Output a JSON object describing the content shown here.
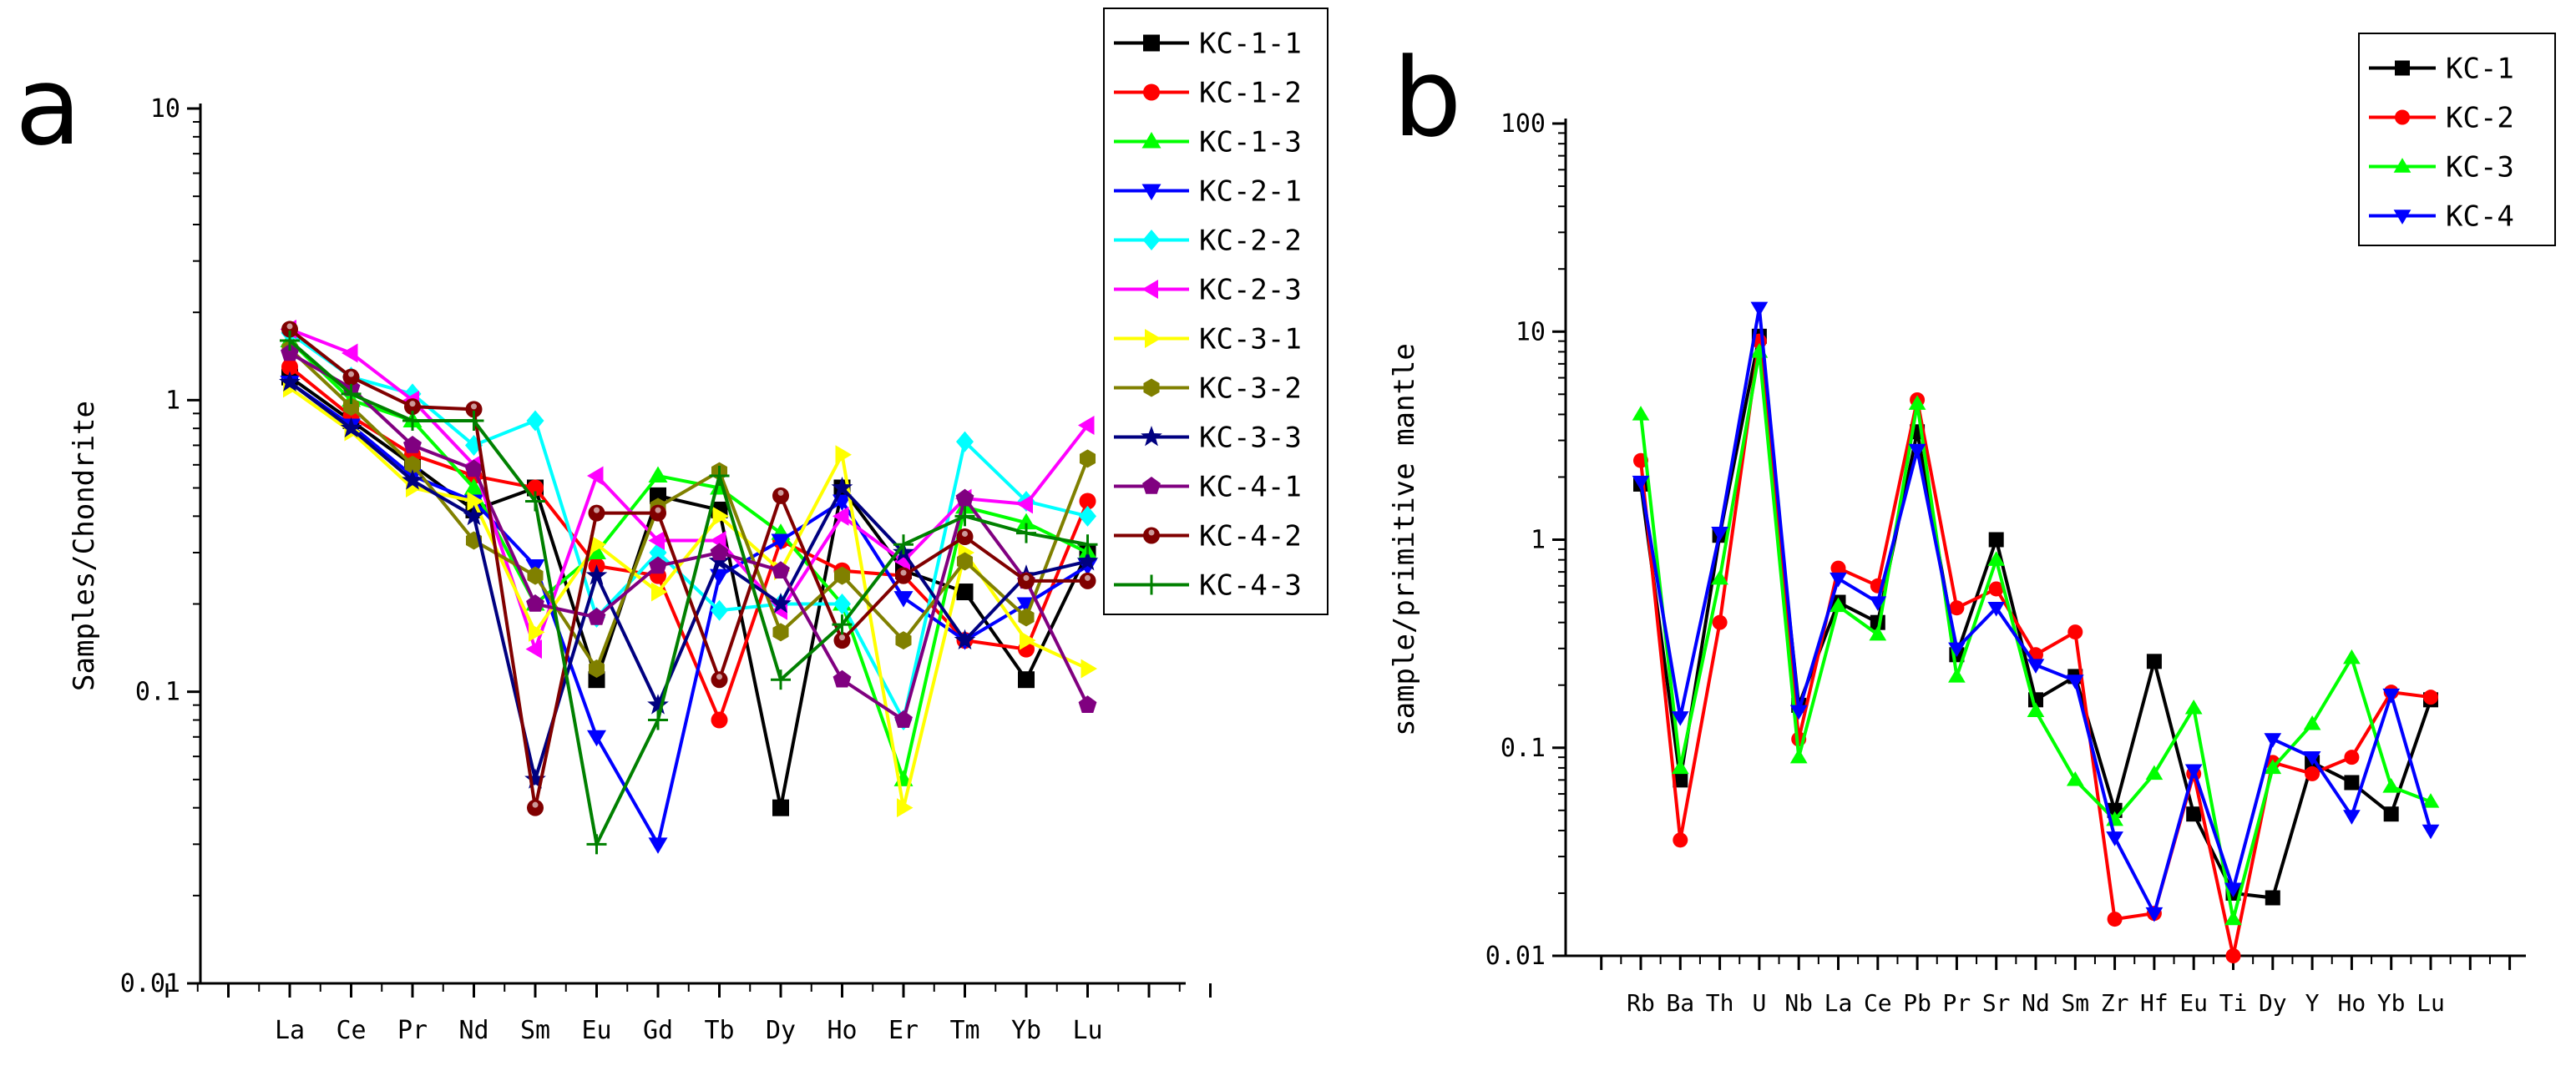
{
  "chart_data": [
    {
      "type": "line",
      "panel_label": "a",
      "ylabel": "Samples/Chondrite",
      "xlabel": "",
      "yscale": "log",
      "ylim": [
        0.01,
        10
      ],
      "ytick_labels": [
        "0.01",
        "0.1",
        "1",
        "10"
      ],
      "categories": [
        "La",
        "Ce",
        "Pr",
        "Nd",
        "Sm",
        "Eu",
        "Gd",
        "Tb",
        "Dy",
        "Ho",
        "Er",
        "Tm",
        "Yb",
        "Lu"
      ],
      "legend_position": "outside-right",
      "series": [
        {
          "name": "KC-1-1",
          "color": "#000000",
          "marker": "square",
          "values": [
            1.2,
            0.85,
            0.6,
            0.42,
            0.5,
            0.11,
            0.47,
            0.42,
            0.04,
            0.5,
            0.26,
            0.22,
            0.11,
            0.3
          ]
        },
        {
          "name": "KC-1-2",
          "color": "#ff0000",
          "marker": "circle",
          "values": [
            1.3,
            0.88,
            0.65,
            0.55,
            0.5,
            0.27,
            0.25,
            0.08,
            0.33,
            0.26,
            0.25,
            0.15,
            0.14,
            0.45
          ]
        },
        {
          "name": "KC-1-3",
          "color": "#00ff00",
          "marker": "triangle-up",
          "values": [
            1.6,
            1.0,
            0.85,
            0.5,
            0.2,
            0.3,
            0.55,
            0.5,
            0.35,
            0.2,
            0.05,
            0.43,
            0.38,
            0.3
          ]
        },
        {
          "name": "KC-2-1",
          "color": "#0000ff",
          "marker": "triangle-down",
          "values": [
            1.15,
            0.82,
            0.55,
            0.45,
            0.27,
            0.07,
            0.03,
            0.25,
            0.33,
            0.45,
            0.21,
            0.15,
            0.2,
            0.27
          ]
        },
        {
          "name": "KC-2-2",
          "color": "#00ffff",
          "marker": "diamond",
          "values": [
            1.7,
            1.2,
            1.05,
            0.7,
            0.85,
            0.18,
            0.3,
            0.19,
            0.2,
            0.2,
            0.08,
            0.72,
            0.45,
            0.4
          ]
        },
        {
          "name": "KC-2-3",
          "color": "#ff00ff",
          "marker": "triangle-left",
          "values": [
            1.75,
            1.45,
            1.0,
            0.6,
            0.14,
            0.55,
            0.33,
            0.33,
            0.19,
            0.4,
            0.28,
            0.46,
            0.44,
            0.82
          ]
        },
        {
          "name": "KC-3-1",
          "color": "#ffff00",
          "marker": "triangle-right",
          "values": [
            1.1,
            0.78,
            0.5,
            0.45,
            0.16,
            0.32,
            0.22,
            0.4,
            0.26,
            0.65,
            0.04,
            0.3,
            0.15,
            0.12
          ]
        },
        {
          "name": "KC-3-2",
          "color": "#808000",
          "marker": "hexagon",
          "values": [
            1.5,
            0.95,
            0.6,
            0.33,
            0.25,
            0.12,
            0.43,
            0.57,
            0.16,
            0.25,
            0.15,
            0.28,
            0.18,
            0.63
          ]
        },
        {
          "name": "KC-3-3",
          "color": "#000080",
          "marker": "star",
          "values": [
            1.15,
            0.8,
            0.53,
            0.4,
            0.05,
            0.25,
            0.09,
            0.28,
            0.2,
            0.5,
            0.3,
            0.15,
            0.25,
            0.28
          ]
        },
        {
          "name": "KC-4-1",
          "color": "#800080",
          "marker": "pentagon",
          "values": [
            1.45,
            1.1,
            0.7,
            0.58,
            0.2,
            0.18,
            0.27,
            0.3,
            0.26,
            0.11,
            0.08,
            0.46,
            0.24,
            0.09
          ]
        },
        {
          "name": "KC-4-2",
          "color": "#800000",
          "marker": "circle-dot",
          "values": [
            1.75,
            1.2,
            0.95,
            0.93,
            0.04,
            0.41,
            0.41,
            0.11,
            0.47,
            0.15,
            0.25,
            0.34,
            0.24,
            0.24
          ]
        },
        {
          "name": "KC-4-3",
          "color": "#008000",
          "marker": "plus",
          "values": [
            1.6,
            1.05,
            0.85,
            0.85,
            0.45,
            0.03,
            0.08,
            0.55,
            0.11,
            0.17,
            0.32,
            0.4,
            0.35,
            0.32
          ]
        }
      ]
    },
    {
      "type": "line",
      "panel_label": "b",
      "ylabel": "sample/primitive mantle",
      "xlabel": "",
      "yscale": "log",
      "ylim": [
        0.01,
        100
      ],
      "ytick_labels": [
        "0.01",
        "0.1",
        "1",
        "10",
        "100"
      ],
      "categories": [
        "Rb",
        "Ba",
        "Th",
        "U",
        "Nb",
        "La",
        "Ce",
        "Pb",
        "Pr",
        "Sr",
        "Nd",
        "Sm",
        "Zr",
        "Hf",
        "Eu",
        "Ti",
        "Dy",
        "Y",
        "Ho",
        "Yb",
        "Lu"
      ],
      "legend_position": "top-right",
      "series": [
        {
          "name": "KC-1",
          "color": "#000000",
          "marker": "square",
          "values": [
            1.85,
            0.07,
            1.05,
            9.5,
            0.16,
            0.5,
            0.4,
            3.3,
            0.28,
            1.0,
            0.17,
            0.22,
            0.05,
            0.26,
            0.048,
            0.02,
            0.019,
            0.085,
            0.068,
            0.048,
            0.17
          ]
        },
        {
          "name": "KC-2",
          "color": "#ff0000",
          "marker": "circle",
          "values": [
            2.4,
            0.036,
            0.4,
            9.0,
            0.11,
            0.73,
            0.6,
            4.7,
            0.47,
            0.58,
            0.28,
            0.36,
            0.015,
            0.016,
            0.075,
            0.01,
            0.085,
            0.075,
            0.09,
            0.185,
            0.175
          ]
        },
        {
          "name": "KC-3",
          "color": "#00ff00",
          "marker": "triangle-up",
          "values": [
            4.0,
            0.08,
            0.65,
            8.0,
            0.09,
            0.48,
            0.35,
            4.5,
            0.22,
            0.8,
            0.15,
            0.07,
            0.045,
            0.075,
            0.155,
            0.015,
            0.08,
            0.13,
            0.27,
            0.065,
            0.055
          ]
        },
        {
          "name": "KC-4",
          "color": "#0000ff",
          "marker": "triangle-down",
          "values": [
            1.9,
            0.14,
            1.08,
            13.0,
            0.15,
            0.65,
            0.5,
            2.7,
            0.3,
            0.47,
            0.25,
            0.21,
            0.037,
            0.016,
            0.078,
            0.021,
            0.11,
            0.09,
            0.047,
            0.18,
            0.04
          ]
        }
      ]
    }
  ]
}
